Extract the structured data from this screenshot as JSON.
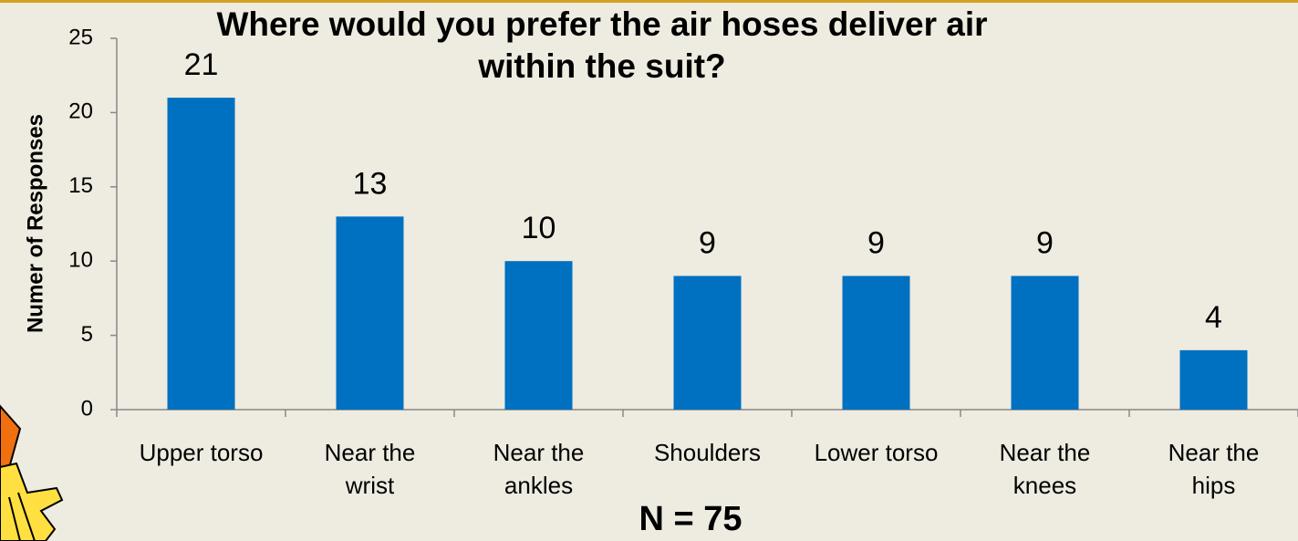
{
  "chart_data": {
    "type": "bar",
    "title": "Where would you prefer the air hoses deliver air\nwithin the suit?",
    "y_label": "Numer of Responses",
    "annotation": "N = 75",
    "categories": [
      "Upper torso",
      "Near the\nwrist",
      "Near the\nankles",
      "Shoulders",
      "Lower torso",
      "Near the\nknees",
      "Near the\nhips"
    ],
    "values": [
      21,
      13,
      10,
      9,
      9,
      9,
      4
    ],
    "color": "#0070c0",
    "ylim": [
      0,
      25
    ],
    "yticks": [
      0,
      5,
      10,
      15,
      20,
      25
    ],
    "grid": false
  }
}
